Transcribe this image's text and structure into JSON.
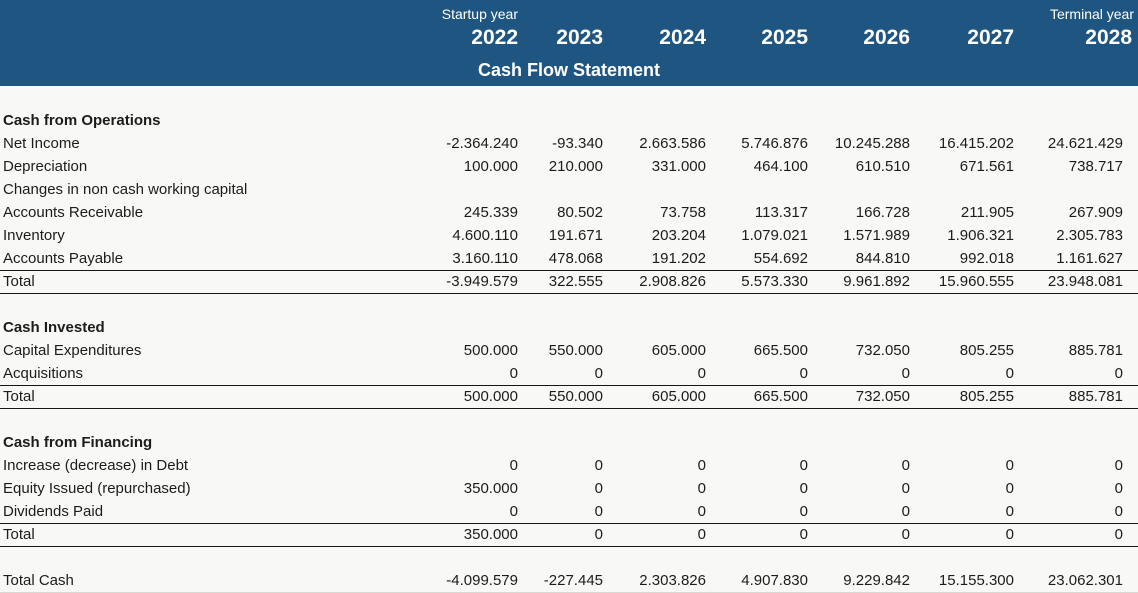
{
  "header": {
    "startup_label": "Startup year",
    "terminal_label": "Terminal year",
    "years": [
      "2022",
      "2023",
      "2024",
      "2025",
      "2026",
      "2027",
      "2028"
    ],
    "title": "Cash Flow Statement",
    "bg_color": "#1F5581",
    "text_color": "#FFFFFF"
  },
  "sections": [
    {
      "title": "Cash from Operations",
      "rows": [
        {
          "label": "Net Income",
          "values": [
            "-2.364.240",
            "-93.340",
            "2.663.586",
            "5.746.876",
            "10.245.288",
            "16.415.202",
            "24.621.429"
          ]
        },
        {
          "label": "Depreciation",
          "values": [
            "100.000",
            "210.000",
            "331.000",
            "464.100",
            "610.510",
            "671.561",
            "738.717"
          ]
        },
        {
          "label": "Changes in non cash working capital",
          "values": []
        },
        {
          "label": "Accounts Receivable",
          "values": [
            "245.339",
            "80.502",
            "73.758",
            "113.317",
            "166.728",
            "211.905",
            "267.909"
          ]
        },
        {
          "label": "Inventory",
          "values": [
            "4.600.110",
            "191.671",
            "203.204",
            "1.079.021",
            "1.571.989",
            "1.906.321",
            "2.305.783"
          ]
        },
        {
          "label": "Accounts Payable",
          "values": [
            "3.160.110",
            "478.068",
            "191.202",
            "554.692",
            "844.810",
            "992.018",
            "1.161.627"
          ],
          "underline": true
        },
        {
          "label": "Total",
          "values": [
            "-3.949.579",
            "322.555",
            "2.908.826",
            "5.573.330",
            "9.961.892",
            "15.960.555",
            "23.948.081"
          ],
          "underline": true
        }
      ]
    },
    {
      "title": "Cash Invested",
      "rows": [
        {
          "label": "Capital Expenditures",
          "values": [
            "500.000",
            "550.000",
            "605.000",
            "665.500",
            "732.050",
            "805.255",
            "885.781"
          ]
        },
        {
          "label": "Acquisitions",
          "values": [
            "0",
            "0",
            "0",
            "0",
            "0",
            "0",
            "0"
          ],
          "underline": true
        },
        {
          "label": "Total",
          "values": [
            "500.000",
            "550.000",
            "605.000",
            "665.500",
            "732.050",
            "805.255",
            "885.781"
          ],
          "underline": true
        }
      ]
    },
    {
      "title": "Cash from Financing",
      "rows": [
        {
          "label": "Increase (decrease) in Debt",
          "values": [
            "0",
            "0",
            "0",
            "0",
            "0",
            "0",
            "0"
          ]
        },
        {
          "label": "Equity Issued (repurchased)",
          "values": [
            "350.000",
            "0",
            "0",
            "0",
            "0",
            "0",
            "0"
          ]
        },
        {
          "label": "Dividends Paid",
          "values": [
            "0",
            "0",
            "0",
            "0",
            "0",
            "0",
            "0"
          ],
          "underline": true
        },
        {
          "label": "Total",
          "values": [
            "350.000",
            "0",
            "0",
            "0",
            "0",
            "0",
            "0"
          ],
          "underline": true
        }
      ]
    }
  ],
  "footer_row": {
    "label": "Total Cash",
    "values": [
      "-4.099.579",
      "-227.445",
      "2.303.826",
      "4.907.830",
      "9.229.842",
      "15.155.300",
      "23.062.301"
    ]
  }
}
